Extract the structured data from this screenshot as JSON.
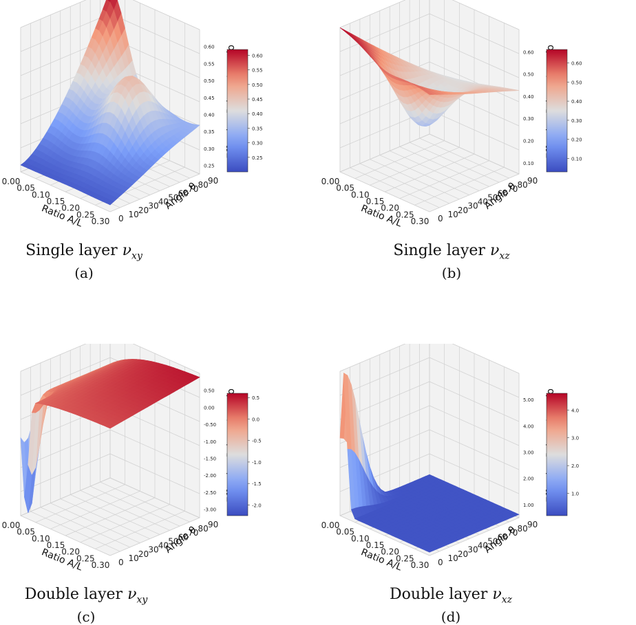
{
  "chart_data": [
    {
      "type": "surface3d",
      "panel_label": "(a)",
      "caption_text": "Single layer",
      "caption_symbol": "ν",
      "caption_sub": "xy",
      "xlabel": "Ratio A/L",
      "ylabel": "Angle θ",
      "zlabel": "Effective Poisson's ratio",
      "x_ticks": [
        "0.00",
        "0.05",
        "0.10",
        "0.15",
        "0.20",
        "0.25",
        "0.30"
      ],
      "y_ticks": [
        "0",
        "10",
        "20",
        "30",
        "40",
        "50",
        "60",
        "70",
        "80",
        "90"
      ],
      "z_ticks": [
        "0.25",
        "0.30",
        "0.35",
        "0.40",
        "0.45",
        "0.50",
        "0.55",
        "0.60"
      ],
      "colorbar_ticks": [
        "0.25",
        "0.30",
        "0.35",
        "0.40",
        "0.45",
        "0.50",
        "0.55",
        "0.60"
      ],
      "zlim": [
        0.2,
        0.62
      ],
      "colormap": "coolwarm",
      "surface_corners": {
        "x0_y0": 0.22,
        "x0_y90": 0.62,
        "x30_y90": 0.35,
        "x30_y0": 0.22,
        "peak_mid": 0.47
      }
    },
    {
      "type": "surface3d",
      "panel_label": "(b)",
      "caption_text": "Single layer",
      "caption_symbol": "ν",
      "caption_sub": "xz",
      "xlabel": "Ratio A/L",
      "ylabel": "Angle θ",
      "zlabel": "Effective Poisson's ratio",
      "x_ticks": [
        "0.00",
        "0.05",
        "0.10",
        "0.15",
        "0.20",
        "0.25",
        "0.30"
      ],
      "y_ticks": [
        "0",
        "10",
        "20",
        "30",
        "40",
        "50",
        "60",
        "70",
        "80",
        "90"
      ],
      "z_ticks": [
        "0.10",
        "0.20",
        "0.30",
        "0.40",
        "0.50",
        "0.60"
      ],
      "colorbar_ticks": [
        "0.10",
        "0.20",
        "0.30",
        "0.40",
        "0.50",
        "0.60"
      ],
      "zlim": [
        0.03,
        0.67
      ],
      "colormap": "coolwarm",
      "surface_corners": {
        "x0_y0": 0.67,
        "x0_y90": 0.3,
        "x30_y90": 0.4,
        "x30_y0": 0.55
      }
    },
    {
      "type": "surface3d",
      "panel_label": "(c)",
      "caption_text": "Double layer",
      "caption_symbol": "ν",
      "caption_sub": "xy",
      "xlabel": "Ratio A/L",
      "ylabel": "Angle θ",
      "zlabel": "Effective Poisson's ratio",
      "x_ticks": [
        "0.00",
        "0.05",
        "0.10",
        "0.15",
        "0.20",
        "0.25",
        "0.30"
      ],
      "y_ticks": [
        "0",
        "10",
        "20",
        "30",
        "40",
        "50",
        "60",
        "70",
        "80",
        "90"
      ],
      "z_ticks": [
        "-3.00",
        "-2.50",
        "-2.00",
        "-1.50",
        "-1.00",
        "-0.50",
        "0.00",
        "0.50"
      ],
      "colorbar_ticks": [
        "-2.0",
        "-1.5",
        "-1.0",
        "-0.5",
        "0.0",
        "0.5"
      ],
      "zlim": [
        -2.25,
        0.6
      ],
      "colormap": "coolwarm",
      "surface_corners": {
        "x0_y0": 0.0,
        "x0_y90": 0.55,
        "x30_y90": 0.5,
        "x30_y0": 0.3,
        "dip_min": -2.25
      }
    },
    {
      "type": "surface3d",
      "panel_label": "(d)",
      "caption_text": "Double layer",
      "caption_symbol": "ν",
      "caption_sub": "xz",
      "xlabel": "Ratio A/L",
      "ylabel": "Angle θ",
      "zlabel": "Effective Poisson's ratio",
      "x_ticks": [
        "0.00",
        "0.05",
        "0.10",
        "0.15",
        "0.20",
        "0.25",
        "0.30"
      ],
      "y_ticks": [
        "0",
        "10",
        "20",
        "30",
        "40",
        "50",
        "60",
        "70",
        "80",
        "90"
      ],
      "z_ticks": [
        "1.00",
        "2.00",
        "3.00",
        "4.00",
        "5.00"
      ],
      "colorbar_ticks": [
        "1.0",
        "2.0",
        "3.0",
        "4.0"
      ],
      "zlim": [
        0.2,
        4.6
      ],
      "colormap": "coolwarm",
      "surface_corners": {
        "x0_y0": 0.3,
        "x0_y90": 0.3,
        "x30_y90": 0.3,
        "x30_y0": 0.3,
        "peak_max": 4.6
      }
    }
  ]
}
